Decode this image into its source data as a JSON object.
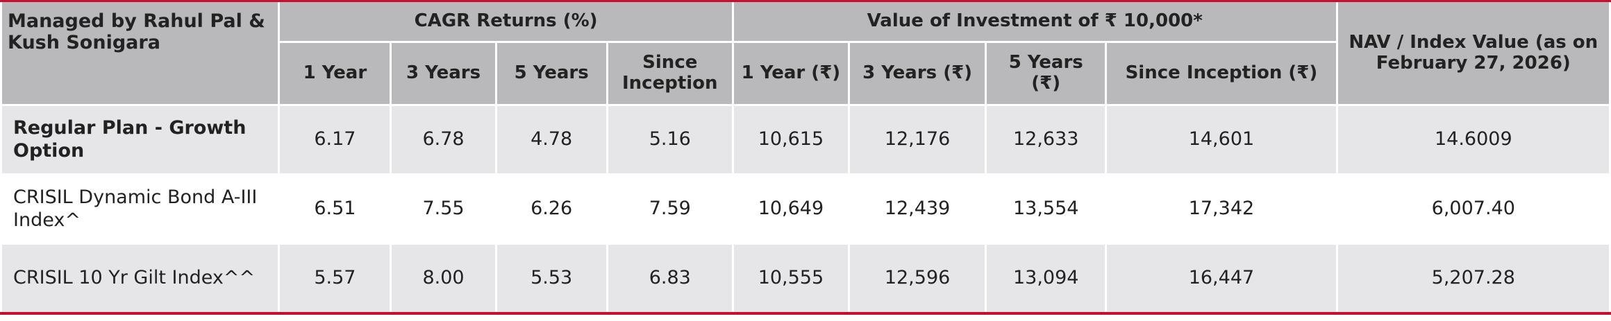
{
  "table": {
    "header": {
      "manager": "Managed by Rahul Pal & Kush Sonigara",
      "cagr_group": "CAGR Returns (%)",
      "value_group": "Value of Investment of ₹ 10,000*",
      "nav": "NAV / Index Value (as on February 27, 2026)",
      "columns": [
        "1 Year",
        "3 Years",
        "5 Years",
        "Since Inception",
        "1 Year (₹)",
        "3 Years (₹)",
        "5 Years (₹)",
        "Since Inception (₹)"
      ]
    },
    "rows": [
      {
        "label": "Regular Plan - Growth Option",
        "cells": [
          "6.17",
          "6.78",
          "4.78",
          "5.16",
          "10,615",
          "12,176",
          "12,633",
          "14,601",
          "14.6009"
        ]
      },
      {
        "label": "CRISIL Dynamic Bond A-III Index^",
        "cells": [
          "6.51",
          "7.55",
          "6.26",
          "7.59",
          "10,649",
          "12,439",
          "13,554",
          "17,342",
          "6,007.40"
        ]
      },
      {
        "label": "CRISIL 10 Yr Gilt Index^^",
        "cells": [
          "5.57",
          "8.00",
          "5.53",
          "6.83",
          "10,555",
          "12,596",
          "13,094",
          "16,447",
          "5,207.28"
        ]
      }
    ]
  }
}
